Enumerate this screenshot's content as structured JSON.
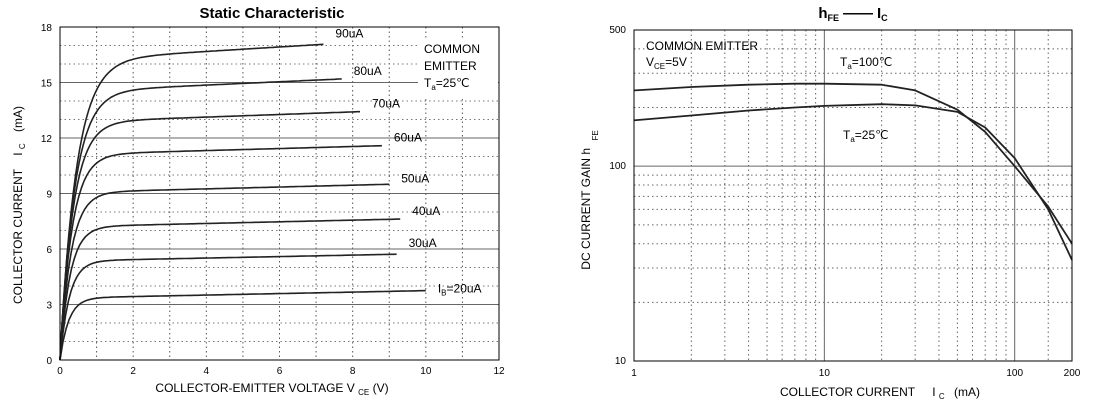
{
  "chart_data": [
    {
      "type": "line",
      "title": "Static Characteristic",
      "xlabel": "COLLECTOR-EMITTER VOLTAGE V",
      "xlabel_sub": "CE",
      "xlabel_unit": "(V)",
      "ylabel": "COLLECTOR CURRENT",
      "ylabel_symbol": "I",
      "ylabel_symbol_sub": "C",
      "ylabel_unit": "(mA)",
      "xlim": [
        0,
        12
      ],
      "ylim": [
        0,
        18
      ],
      "xticks": [
        "0",
        "2",
        "4",
        "6",
        "8",
        "10",
        "12"
      ],
      "yticks": [
        "0",
        "3",
        "6",
        "9",
        "12",
        "15",
        "18"
      ],
      "grid": true,
      "conditions": [
        "COMMON",
        "EMITTER",
        "T",
        "a",
        "=25",
        "℃"
      ],
      "series": [
        {
          "name": "IB=20uA",
          "label": "I",
          "label_sub": "B",
          "label_rest": "=20uA",
          "sat": 3.35,
          "slope": 0.04,
          "vmax": 10.0
        },
        {
          "name": "30uA",
          "label": "30uA",
          "sat": 5.35,
          "slope": 0.04,
          "vmax": 9.2
        },
        {
          "name": "40uA",
          "label": "40uA",
          "sat": 7.2,
          "slope": 0.045,
          "vmax": 9.3
        },
        {
          "name": "50uA",
          "label": "50uA",
          "sat": 9.05,
          "slope": 0.05,
          "vmax": 9.0
        },
        {
          "name": "60uA",
          "label": "60uA",
          "sat": 11.1,
          "slope": 0.055,
          "vmax": 8.8
        },
        {
          "name": "70uA",
          "label": "70uA",
          "sat": 12.85,
          "slope": 0.07,
          "vmax": 8.2
        },
        {
          "name": "80uA",
          "label": "80uA",
          "sat": 14.5,
          "slope": 0.09,
          "vmax": 7.7
        },
        {
          "name": "90uA",
          "label": "90uA",
          "sat": 16.2,
          "slope": 0.12,
          "vmax": 7.2
        }
      ]
    },
    {
      "type": "line",
      "title": "h",
      "title_sub": "FE",
      "title_dash": "——",
      "title_rest": "I",
      "title_rest_sub": "C",
      "xlabel": "COLLECTOR CURRENT",
      "xlabel_symbol": "I",
      "xlabel_symbol_sub": "C",
      "xlabel_unit": "(mA)",
      "ylabel": "DC CURRENT GAIN h",
      "ylabel_sub": "FE",
      "x_scale": "log",
      "y_scale": "log",
      "xlim": [
        1,
        200
      ],
      "ylim": [
        10,
        500
      ],
      "xticks": [
        "1",
        "10",
        "100",
        "200"
      ],
      "yticks": [
        "10",
        "100",
        "500"
      ],
      "grid": true,
      "conditions": [
        "COMMON EMITTER",
        "V",
        "CE",
        "=5V"
      ],
      "series": [
        {
          "name": "Ta=100℃",
          "label": "T",
          "label_sub": "a",
          "label_rest": "=100",
          "label_unit": "℃",
          "x": [
            1,
            2,
            4,
            7,
            10,
            20,
            30,
            50,
            70,
            100,
            150,
            200
          ],
          "y": [
            245,
            255,
            262,
            265,
            265,
            262,
            245,
            195,
            150,
            100,
            62,
            40
          ]
        },
        {
          "name": "Ta=25℃",
          "label": "T",
          "label_sub": "a",
          "label_rest": "=25",
          "label_unit": "℃",
          "x": [
            1,
            2,
            4,
            7,
            10,
            20,
            30,
            50,
            70,
            100,
            150,
            200
          ],
          "y": [
            172,
            182,
            193,
            200,
            204,
            208,
            205,
            190,
            158,
            110,
            60,
            33
          ]
        }
      ]
    }
  ]
}
